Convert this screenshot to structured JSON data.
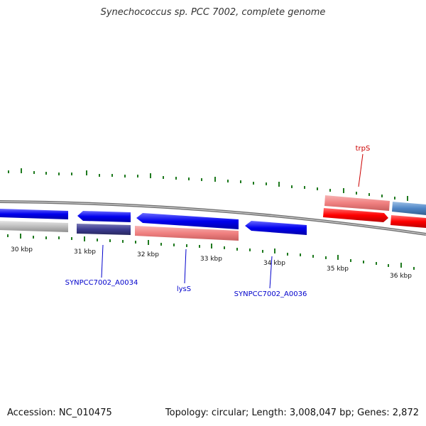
{
  "title": "Synechococcus sp. PCC 7002, complete genome",
  "footer": {
    "accession": "Accession: NC_010475",
    "summary": "Topology: circular; Length: 3,008,047 bp; Genes: 2,872"
  },
  "axis_labels": [
    "30 kbp",
    "31 kbp",
    "32 kbp",
    "33 kbp",
    "34 kbp",
    "35 kbp",
    "36 kbp"
  ],
  "gene_labels": [
    {
      "text": "SYNPCC7002_A0034",
      "color": "#0000cc"
    },
    {
      "text": "lysS",
      "color": "#0000cc"
    },
    {
      "text": "SYNPCC7002_A0036",
      "color": "#0000cc"
    },
    {
      "text": "trpS",
      "color": "#cc0000"
    }
  ],
  "colors": {
    "blue_gene": "#0000ee",
    "navy_gene": "#3b3b8f",
    "pink_gene": "#f08080",
    "red_gene": "#ff0000",
    "steel_gene": "#4f86c6",
    "gray_gene": "#bdbdbd",
    "tick": "#1f7a1f",
    "backbone": "#808080"
  }
}
